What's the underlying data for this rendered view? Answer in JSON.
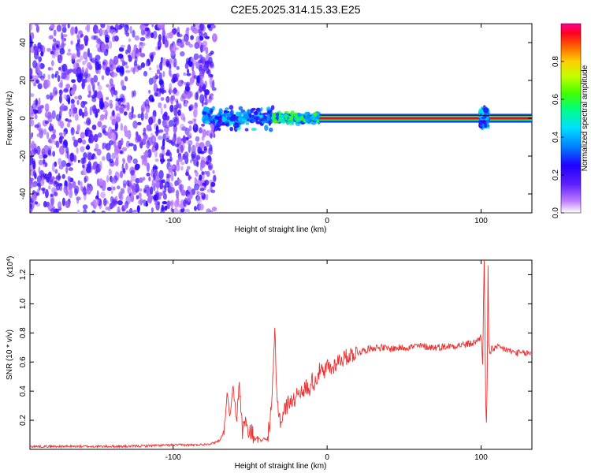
{
  "title": "C2E5.2025.314.15.33.E25",
  "chart_data": [
    {
      "type": "heatmap",
      "title": "",
      "xlabel": "Height of straight line (km)",
      "ylabel": "Frequency (Hz)",
      "xlim": [
        -193,
        133
      ],
      "ylim": [
        -50,
        50
      ],
      "x_ticks": [
        -100,
        0,
        100
      ],
      "y_ticks": [
        -40,
        -20,
        0,
        20,
        40
      ],
      "x_tick_labels": [
        "-100",
        "0",
        "100"
      ],
      "y_tick_labels": [
        "-40",
        "-20",
        "0",
        "20",
        "40"
      ],
      "colorbar": {
        "label": "Normalized spectral amplitude",
        "range": [
          0,
          1
        ],
        "ticks": [
          0,
          0.2,
          0.4,
          0.6,
          0.8
        ],
        "tick_labels": [
          "0.0",
          "0.2",
          "0.4",
          "0.6",
          "0.8"
        ],
        "colors": [
          "#ffffff",
          "#b060ff",
          "#4000ff",
          "#0080ff",
          "#00ffff",
          "#00ff60",
          "#80ff00",
          "#ffff00",
          "#ff8000",
          "#ff0000",
          "#ff0080"
        ]
      },
      "regions": [
        {
          "x": [
            -193,
            -73
          ],
          "freq_range": [
            -50,
            50
          ],
          "amplitude": 0.15
        },
        {
          "x": [
            -80,
            -35
          ],
          "freq_range": [
            -7,
            7
          ],
          "amplitude": 0.4
        },
        {
          "x": [
            -35,
            -5
          ],
          "freq_range": [
            -3,
            3
          ],
          "amplitude": 0.55
        },
        {
          "x": [
            -5,
            133
          ],
          "freq_range": [
            -1.5,
            1.5
          ],
          "amplitude": 0.95
        },
        {
          "x": [
            100,
            104
          ],
          "freq_range": [
            -6,
            6
          ],
          "amplitude": 0.4
        }
      ]
    },
    {
      "type": "line",
      "title": "",
      "xlabel": "Height of straight line (km)",
      "ylabel": "SNR (10 * v/v)",
      "y_multiplier_label": "(x10",
      "y_multiplier_exp": "4",
      "y_multiplier_close": ")",
      "xlim": [
        -193,
        133
      ],
      "ylim": [
        0,
        1.3
      ],
      "x_ticks": [
        -100,
        0,
        100
      ],
      "y_ticks": [
        0.2,
        0.4,
        0.6,
        0.8,
        1.0,
        1.2
      ],
      "x_tick_labels": [
        "-100",
        "0",
        "100"
      ],
      "y_tick_labels": [
        "0.2",
        "0.4",
        "0.6",
        "0.8",
        "1.0",
        "1.2"
      ],
      "series": [
        {
          "color": "#f03030",
          "x": [
            -193,
            -160,
            -130,
            -100,
            -85,
            -75,
            -70,
            -67,
            -65,
            -63,
            -61,
            -59,
            -57,
            -55,
            -53,
            -51,
            -49,
            -47,
            -45,
            -43,
            -41,
            -39,
            -37,
            -35,
            -34,
            -33,
            -32,
            -30,
            -28,
            -26,
            -24,
            -22,
            -20,
            -18,
            -16,
            -14,
            -12,
            -10,
            -8,
            -6,
            -4,
            -2,
            0,
            3,
            6,
            9,
            12,
            15,
            18,
            21,
            24,
            27,
            30,
            35,
            40,
            50,
            60,
            70,
            80,
            90,
            95,
            98,
            100,
            101,
            102,
            103,
            103.5,
            104,
            104.5,
            105,
            106,
            107,
            108,
            110,
            115,
            120,
            125,
            133
          ],
          "values": [
            0.02,
            0.02,
            0.02,
            0.03,
            0.03,
            0.04,
            0.06,
            0.12,
            0.38,
            0.22,
            0.44,
            0.18,
            0.46,
            0.12,
            0.22,
            0.08,
            0.14,
            0.06,
            0.1,
            0.05,
            0.08,
            0.06,
            0.2,
            0.5,
            0.85,
            0.42,
            0.3,
            0.18,
            0.27,
            0.3,
            0.35,
            0.32,
            0.38,
            0.42,
            0.36,
            0.44,
            0.4,
            0.48,
            0.45,
            0.52,
            0.55,
            0.5,
            0.58,
            0.55,
            0.6,
            0.62,
            0.63,
            0.65,
            0.66,
            0.67,
            0.68,
            0.69,
            0.7,
            0.7,
            0.69,
            0.7,
            0.71,
            0.7,
            0.71,
            0.72,
            0.73,
            0.75,
            0.78,
            0.6,
            1.3,
            0.35,
            0.16,
            0.5,
            1.28,
            0.7,
            0.65,
            0.72,
            0.68,
            0.7,
            0.69,
            0.67,
            0.66,
            0.66
          ]
        }
      ]
    }
  ]
}
